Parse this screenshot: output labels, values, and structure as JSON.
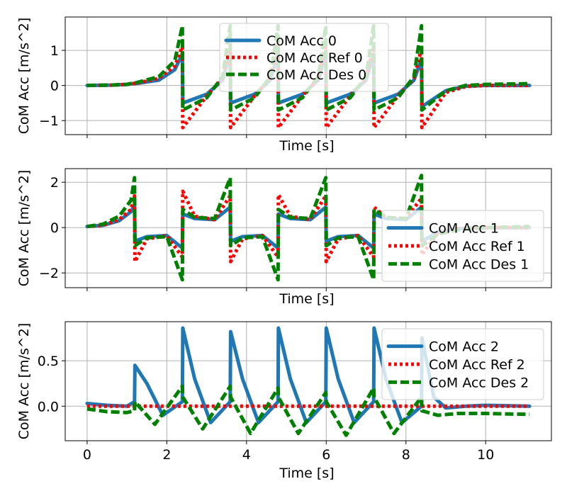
{
  "colors": {
    "acc": "#1f77b4",
    "ref": "#ff0000",
    "des": "#008000"
  },
  "chart_data": [
    {
      "type": "line",
      "xlabel": "Time [s]",
      "ylabel": "CoM Acc [m/s^2]",
      "xlim": [
        -0.55,
        11.65
      ],
      "ylim": [
        -1.4,
        1.95
      ],
      "yticks": [
        -1,
        0,
        1
      ],
      "ytick_labels": [
        "−1",
        "0",
        "1"
      ],
      "xticks": [
        0,
        2,
        4,
        6,
        8,
        10
      ],
      "xtick_labels": [],
      "grid": true,
      "legend_position": "top-center",
      "series": [
        {
          "name": "CoM Acc 0",
          "style": "solid",
          "x": [
            0,
            0.6,
            1.0,
            1.19,
            1.2,
            1.8,
            2.2,
            2.39,
            2.4,
            3.0,
            3.4,
            3.59,
            3.6,
            4.2,
            4.6,
            4.79,
            4.8,
            5.4,
            5.8,
            5.99,
            6.0,
            6.6,
            7.0,
            7.19,
            7.2,
            7.8,
            8.2,
            8.39,
            8.4,
            9.0,
            9.5,
            10.0,
            11.1
          ],
          "y": [
            0,
            0.01,
            0.03,
            0.06,
            0.05,
            0.15,
            0.45,
            0.9,
            -0.5,
            -0.25,
            0.15,
            0.9,
            -0.5,
            -0.25,
            0.15,
            0.9,
            -0.5,
            -0.25,
            0.15,
            0.9,
            -0.5,
            -0.25,
            0.15,
            0.9,
            -0.5,
            -0.25,
            0.15,
            0.75,
            -0.6,
            -0.15,
            -0.02,
            0.0,
            0.0
          ]
        },
        {
          "name": "CoM Acc Ref 0",
          "style": "dotted",
          "x": [
            0,
            0.6,
            1.0,
            1.19,
            1.2,
            1.8,
            2.2,
            2.39,
            2.4,
            3.0,
            3.4,
            3.59,
            3.6,
            4.2,
            4.6,
            4.79,
            4.8,
            5.4,
            5.8,
            5.99,
            6.0,
            6.6,
            7.0,
            7.19,
            7.2,
            7.8,
            8.2,
            8.39,
            8.4,
            9.0,
            9.5,
            10.0,
            11.1
          ],
          "y": [
            0,
            0.01,
            0.03,
            0.06,
            0.05,
            0.2,
            0.55,
            1.1,
            -1.2,
            -0.3,
            0.2,
            1.1,
            -1.2,
            -0.3,
            0.2,
            1.1,
            -1.2,
            -0.3,
            0.2,
            1.1,
            -1.2,
            -0.3,
            0.2,
            1.1,
            -1.2,
            -0.3,
            0.2,
            1.05,
            -1.2,
            -0.2,
            -0.03,
            0.0,
            0.0
          ]
        },
        {
          "name": "CoM Acc Des 0",
          "style": "dashed",
          "x": [
            0,
            0.6,
            1.0,
            1.19,
            1.2,
            1.8,
            2.2,
            2.39,
            2.4,
            3.0,
            3.4,
            3.59,
            3.6,
            4.2,
            4.6,
            4.79,
            4.8,
            5.4,
            5.8,
            5.99,
            6.0,
            6.6,
            7.0,
            7.19,
            7.2,
            7.8,
            8.2,
            8.39,
            8.4,
            9.0,
            9.5,
            10.0,
            11.1
          ],
          "y": [
            0,
            0.01,
            0.03,
            0.08,
            0.07,
            0.25,
            0.7,
            1.7,
            -0.7,
            -0.35,
            0.25,
            1.7,
            -0.7,
            -0.35,
            0.25,
            1.7,
            -0.7,
            -0.35,
            0.25,
            1.7,
            -0.7,
            -0.35,
            0.25,
            1.7,
            -0.7,
            -0.35,
            0.25,
            1.7,
            -0.7,
            -0.15,
            0.0,
            0.03,
            0.05
          ]
        }
      ]
    },
    {
      "type": "line",
      "xlabel": "Time [s]",
      "ylabel": "CoM Acc [m/s^2]",
      "xlim": [
        -0.55,
        11.65
      ],
      "ylim": [
        -2.65,
        2.6
      ],
      "yticks": [
        -2,
        0,
        2
      ],
      "ytick_labels": [
        "−2",
        "0",
        "2"
      ],
      "xticks": [
        0,
        2,
        4,
        6,
        8,
        10
      ],
      "xtick_labels": [],
      "grid": true,
      "legend_position": "lower-right",
      "series": [
        {
          "name": "CoM Acc 1",
          "style": "solid",
          "x": [
            0,
            0.4,
            0.8,
            1.1,
            1.19,
            1.2,
            1.5,
            2.0,
            2.39,
            2.4,
            2.7,
            3.2,
            3.59,
            3.6,
            3.9,
            4.4,
            4.79,
            4.8,
            5.1,
            5.6,
            5.99,
            6.0,
            6.3,
            6.8,
            7.19,
            7.2,
            7.5,
            8.0,
            8.39,
            8.4,
            8.8,
            9.3,
            10.0,
            11.1
          ],
          "y": [
            0.05,
            0.1,
            0.3,
            0.7,
            1.0,
            -0.6,
            -0.4,
            -0.35,
            -0.9,
            0.6,
            0.4,
            0.35,
            0.9,
            -0.6,
            -0.4,
            -0.35,
            -0.9,
            0.6,
            0.4,
            0.35,
            0.9,
            -0.6,
            -0.4,
            -0.35,
            -0.9,
            0.6,
            0.4,
            0.35,
            0.9,
            -0.6,
            -0.2,
            -0.05,
            0.0,
            0.0
          ]
        },
        {
          "name": "CoM Acc Ref 1",
          "style": "dotted",
          "x": [
            0,
            0.4,
            0.8,
            1.1,
            1.19,
            1.2,
            1.5,
            2.0,
            2.39,
            2.4,
            2.7,
            3.2,
            3.59,
            3.6,
            3.9,
            4.4,
            4.79,
            4.8,
            5.1,
            5.6,
            5.99,
            6.0,
            6.3,
            6.8,
            7.19,
            7.2,
            7.5,
            8.0,
            8.39,
            8.4,
            8.8,
            9.3,
            10.0,
            11.1
          ],
          "y": [
            0.05,
            0.1,
            0.35,
            0.8,
            1.4,
            -1.5,
            -0.5,
            -0.35,
            -1.3,
            1.6,
            0.5,
            0.35,
            1.4,
            -1.5,
            -0.5,
            -0.35,
            -1.3,
            1.45,
            0.5,
            0.35,
            1.4,
            -1.5,
            -0.5,
            -0.35,
            -1.3,
            0.9,
            0.45,
            0.4,
            1.3,
            -1.2,
            -0.25,
            -0.05,
            0.0,
            0.0
          ]
        },
        {
          "name": "CoM Acc Des 1",
          "style": "dashed",
          "x": [
            0,
            0.4,
            0.8,
            1.1,
            1.19,
            1.2,
            1.5,
            2.0,
            2.39,
            2.4,
            2.7,
            3.2,
            3.59,
            3.6,
            3.9,
            4.4,
            4.79,
            4.8,
            5.1,
            5.6,
            5.99,
            6.0,
            6.3,
            6.8,
            7.19,
            7.2,
            7.5,
            8.0,
            8.39,
            8.4,
            8.8,
            9.3,
            10.0,
            11.1
          ],
          "y": [
            0.05,
            0.15,
            0.5,
            1.2,
            2.2,
            -0.8,
            -0.45,
            -0.4,
            -2.3,
            0.8,
            0.45,
            0.4,
            2.2,
            -0.8,
            -0.45,
            -0.4,
            -2.3,
            0.8,
            0.45,
            0.4,
            2.2,
            -0.8,
            -0.45,
            -0.4,
            -2.3,
            0.8,
            0.45,
            0.4,
            2.3,
            -0.8,
            -0.3,
            -0.1,
            0.0,
            0.05
          ]
        }
      ]
    },
    {
      "type": "line",
      "xlabel": "Time [s]",
      "ylabel": "CoM Acc [m/s^2]",
      "xlim": [
        -0.55,
        11.65
      ],
      "ylim": [
        -0.38,
        0.93
      ],
      "yticks": [
        0.0,
        0.5
      ],
      "ytick_labels": [
        "0.0",
        "0.5"
      ],
      "xticks": [
        0,
        2,
        4,
        6,
        8,
        10
      ],
      "xtick_labels": [
        "0",
        "2",
        "4",
        "6",
        "8",
        "10"
      ],
      "grid": true,
      "legend_position": "upper-right",
      "series": [
        {
          "name": "CoM Acc 2",
          "style": "solid",
          "x": [
            0,
            0.5,
            1.0,
            1.19,
            1.2,
            1.5,
            1.9,
            2.39,
            2.4,
            2.7,
            3.1,
            3.59,
            3.6,
            3.9,
            4.3,
            4.79,
            4.8,
            5.1,
            5.5,
            5.99,
            6.0,
            6.3,
            6.7,
            7.19,
            7.2,
            7.5,
            7.9,
            8.39,
            8.4,
            8.7,
            9.0,
            9.5,
            10.0,
            11.1
          ],
          "y": [
            0.03,
            0.01,
            0.0,
            0.05,
            0.45,
            0.25,
            -0.1,
            0.05,
            0.86,
            0.3,
            -0.18,
            0.05,
            0.82,
            0.3,
            -0.18,
            0.05,
            0.86,
            0.3,
            -0.18,
            0.05,
            0.86,
            0.3,
            -0.18,
            0.05,
            0.86,
            0.3,
            -0.18,
            0.0,
            0.75,
            0.1,
            -0.02,
            0.0,
            0.01,
            0.0
          ]
        },
        {
          "name": "CoM Acc Ref 2",
          "style": "dotted",
          "x": [
            0,
            2,
            4,
            6,
            8,
            10,
            11.1
          ],
          "y": [
            0,
            0,
            0,
            0,
            0,
            0,
            0
          ]
        },
        {
          "name": "CoM Acc Des 2",
          "style": "dashed",
          "x": [
            0,
            0.5,
            1.0,
            1.19,
            1.2,
            1.7,
            2.39,
            2.4,
            2.9,
            3.59,
            3.6,
            4.1,
            4.79,
            4.8,
            5.3,
            5.99,
            6.0,
            6.5,
            7.19,
            7.2,
            7.7,
            8.39,
            8.4,
            8.8,
            9.3,
            10.0,
            11.1
          ],
          "y": [
            -0.03,
            -0.06,
            -0.07,
            -0.05,
            0.05,
            -0.2,
            0.22,
            0.1,
            -0.25,
            0.22,
            0.1,
            -0.3,
            0.2,
            0.1,
            -0.3,
            0.15,
            0.05,
            -0.32,
            0.2,
            0.1,
            -0.3,
            0.1,
            -0.05,
            -0.1,
            -0.08,
            -0.08,
            -0.09
          ]
        }
      ]
    }
  ]
}
